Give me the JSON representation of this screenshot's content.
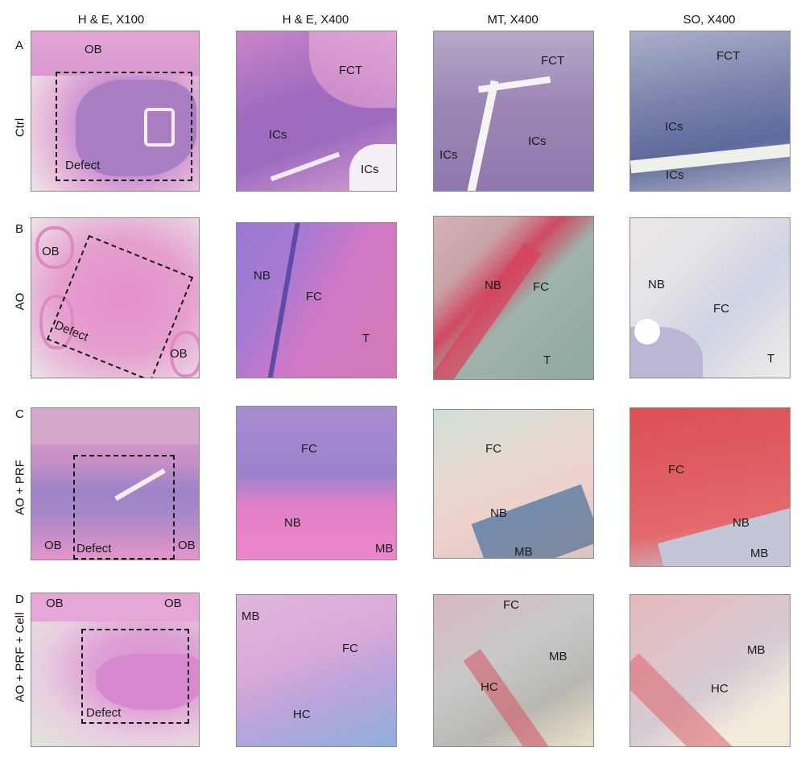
{
  "columns": [
    "H & E, X100",
    "H & E, X400",
    "MT, X400",
    "SO, X400"
  ],
  "rows": [
    {
      "letter": "A",
      "label": "Ctrl"
    },
    {
      "letter": "B",
      "label": "AO"
    },
    {
      "letter": "C",
      "label": "AO + PRF"
    },
    {
      "letter": "D",
      "label": "AO + PRF + Cell"
    }
  ],
  "panels": {
    "a1": {
      "ob": "OB",
      "defect": "Defect"
    },
    "a2": {
      "fct": "FCT",
      "ics1": "ICs",
      "ics2": "ICs"
    },
    "a3": {
      "fct": "FCT",
      "ics1": "ICs",
      "ics2": "ICs"
    },
    "a4": {
      "fct": "FCT",
      "ics1": "ICs",
      "ics2": "ICs"
    },
    "b1": {
      "ob1": "OB",
      "defect": "Defect",
      "ob2": "OB"
    },
    "b2": {
      "nb": "NB",
      "fc": "FC",
      "t": "T"
    },
    "b3": {
      "nb": "NB",
      "fc": "FC",
      "t": "T"
    },
    "b4": {
      "nb": "NB",
      "fc": "FC",
      "t": "T"
    },
    "c1": {
      "ob1": "OB",
      "defect": "Defect",
      "ob2": "OB"
    },
    "c2": {
      "fc": "FC",
      "nb": "NB",
      "mb": "MB"
    },
    "c3": {
      "fc": "FC",
      "nb": "NB",
      "mb": "MB"
    },
    "c4": {
      "fc": "FC",
      "nb": "NB",
      "mb": "MB"
    },
    "d1": {
      "ob1": "OB",
      "ob2": "OB",
      "defect": "Defect"
    },
    "d2": {
      "mb": "MB",
      "fc": "FC",
      "hc": "HC"
    },
    "d3": {
      "fc": "FC",
      "mb": "MB",
      "hc": "HC"
    },
    "d4": {
      "mb": "MB",
      "hc": "HC"
    }
  },
  "colors": {
    "he_pink": "#d77fc0",
    "he_purple": "#9a6fc4",
    "mt_blue": "#8d8fb9",
    "so_blue": "#6f7bb0",
    "safranin_red": "#d9575c"
  }
}
